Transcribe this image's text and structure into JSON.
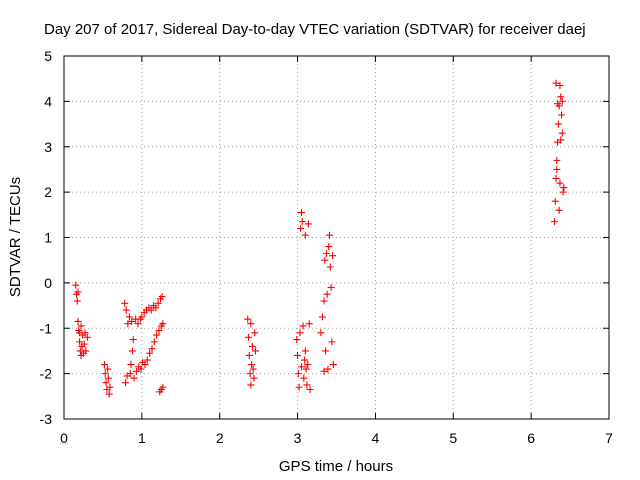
{
  "chart_data": {
    "type": "scatter",
    "title": "Day 207 of 2017, Sidereal Day-to-day VTEC variation (SDTVAR) for receiver daej",
    "xlabel": "GPS time / hours",
    "ylabel": "SDTVAR / TECUs",
    "xlim": [
      0,
      7
    ],
    "ylim": [
      -3,
      5
    ],
    "xticks": [
      "0",
      "1",
      "2",
      "3",
      "4",
      "5",
      "6",
      "7"
    ],
    "yticks": [
      "-3",
      "-2",
      "-1",
      "0",
      "1",
      "2",
      "3",
      "4",
      "5"
    ],
    "grid": true,
    "marker": "+",
    "color": "#ff0000",
    "series": [
      {
        "name": "SDTVAR",
        "points": [
          [
            0.15,
            -0.05
          ],
          [
            0.16,
            -0.25
          ],
          [
            0.17,
            -0.4
          ],
          [
            0.18,
            -0.85
          ],
          [
            0.19,
            -1.05
          ],
          [
            0.2,
            -1.3
          ],
          [
            0.21,
            -1.5
          ],
          [
            0.22,
            -1.6
          ],
          [
            0.23,
            -1.4
          ],
          [
            0.24,
            -1.15
          ],
          [
            0.25,
            -1.55
          ],
          [
            0.26,
            -1.35
          ],
          [
            0.27,
            -1.1
          ],
          [
            0.28,
            -1.5
          ],
          [
            0.3,
            -1.2
          ],
          [
            0.18,
            -0.2
          ],
          [
            0.2,
            -1.1
          ],
          [
            0.22,
            -0.95
          ],
          [
            0.52,
            -1.8
          ],
          [
            0.53,
            -2.0
          ],
          [
            0.54,
            -2.2
          ],
          [
            0.55,
            -2.35
          ],
          [
            0.56,
            -1.9
          ],
          [
            0.57,
            -2.1
          ],
          [
            0.58,
            -2.45
          ],
          [
            0.59,
            -2.3
          ],
          [
            0.78,
            -0.45
          ],
          [
            0.79,
            -2.2
          ],
          [
            0.8,
            -0.6
          ],
          [
            0.81,
            -2.05
          ],
          [
            0.82,
            -0.9
          ],
          [
            0.84,
            -0.75
          ],
          [
            0.85,
            -2.0
          ],
          [
            0.86,
            -1.8
          ],
          [
            0.87,
            -0.85
          ],
          [
            0.88,
            -1.5
          ],
          [
            0.89,
            -1.25
          ],
          [
            0.9,
            -2.1
          ],
          [
            0.92,
            -0.8
          ],
          [
            0.93,
            -1.95
          ],
          [
            0.95,
            -0.9
          ],
          [
            0.96,
            -1.85
          ],
          [
            0.98,
            -0.8
          ],
          [
            0.99,
            -1.9
          ],
          [
            1.0,
            -0.75
          ],
          [
            1.01,
            -1.75
          ],
          [
            1.03,
            -0.65
          ],
          [
            1.04,
            -1.8
          ],
          [
            1.06,
            -0.6
          ],
          [
            1.07,
            -1.7
          ],
          [
            1.09,
            -0.55
          ],
          [
            1.1,
            -1.55
          ],
          [
            1.12,
            -0.6
          ],
          [
            1.13,
            -1.45
          ],
          [
            1.15,
            -0.5
          ],
          [
            1.16,
            -1.3
          ],
          [
            1.18,
            -0.55
          ],
          [
            1.19,
            -1.15
          ],
          [
            1.21,
            -0.45
          ],
          [
            1.22,
            -1.05
          ],
          [
            1.24,
            -0.35
          ],
          [
            1.25,
            -0.95
          ],
          [
            1.26,
            -0.3
          ],
          [
            1.27,
            -0.9
          ],
          [
            1.23,
            -2.4
          ],
          [
            1.25,
            -2.35
          ],
          [
            1.27,
            -2.3
          ],
          [
            2.36,
            -0.8
          ],
          [
            2.37,
            -1.2
          ],
          [
            2.38,
            -1.6
          ],
          [
            2.39,
            -2.0
          ],
          [
            2.4,
            -2.25
          ],
          [
            2.41,
            -1.8
          ],
          [
            2.42,
            -1.4
          ],
          [
            2.43,
            -1.9
          ],
          [
            2.44,
            -2.1
          ],
          [
            2.45,
            -1.1
          ],
          [
            2.46,
            -1.5
          ],
          [
            2.4,
            -0.9
          ],
          [
            2.99,
            -1.25
          ],
          [
            3.0,
            -1.6
          ],
          [
            3.01,
            -2.0
          ],
          [
            3.02,
            -2.3
          ],
          [
            3.03,
            -1.1
          ],
          [
            3.04,
            1.2
          ],
          [
            3.05,
            1.55
          ],
          [
            3.06,
            1.35
          ],
          [
            3.07,
            -0.95
          ],
          [
            3.08,
            -2.1
          ],
          [
            3.09,
            -1.7
          ],
          [
            3.1,
            1.05
          ],
          [
            3.11,
            -1.9
          ],
          [
            3.12,
            -2.25
          ],
          [
            3.13,
            -1.8
          ],
          [
            3.14,
            1.3
          ],
          [
            3.15,
            -0.9
          ],
          [
            3.16,
            -2.35
          ],
          [
            3.05,
            -1.85
          ],
          [
            3.1,
            -1.5
          ],
          [
            3.3,
            -1.1
          ],
          [
            3.32,
            -0.75
          ],
          [
            3.34,
            -0.4
          ],
          [
            3.35,
            0.5
          ],
          [
            3.36,
            -1.5
          ],
          [
            3.37,
            0.65
          ],
          [
            3.38,
            -0.25
          ],
          [
            3.39,
            -1.9
          ],
          [
            3.4,
            0.8
          ],
          [
            3.41,
            1.05
          ],
          [
            3.42,
            0.35
          ],
          [
            3.43,
            -0.1
          ],
          [
            3.44,
            -1.3
          ],
          [
            3.45,
            0.6
          ],
          [
            3.46,
            -1.8
          ],
          [
            3.34,
            -1.95
          ],
          [
            6.3,
            1.35
          ],
          [
            6.31,
            1.8
          ],
          [
            6.32,
            2.3
          ],
          [
            6.33,
            2.7
          ],
          [
            6.34,
            3.1
          ],
          [
            6.35,
            3.5
          ],
          [
            6.36,
            3.9
          ],
          [
            6.37,
            4.35
          ],
          [
            6.38,
            4.1
          ],
          [
            6.39,
            3.7
          ],
          [
            6.4,
            3.3
          ],
          [
            6.41,
            2.0
          ],
          [
            6.42,
            2.1
          ],
          [
            6.32,
            4.4
          ],
          [
            6.34,
            3.95
          ],
          [
            6.36,
            1.6
          ],
          [
            6.38,
            3.15
          ],
          [
            6.4,
            4.0
          ],
          [
            6.33,
            2.5
          ],
          [
            6.37,
            2.2
          ]
        ]
      }
    ]
  }
}
